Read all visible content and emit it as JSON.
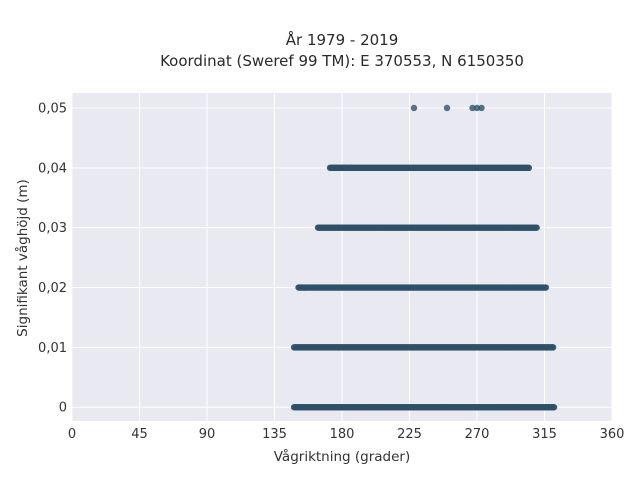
{
  "chart_data": {
    "type": "scatter",
    "title_lines": [
      "År 1979 - 2019",
      "Koordinat (Sweref 99 TM): E 370553, N 6150350"
    ],
    "xlabel": "Vågriktning (grader)",
    "ylabel": "Signifikant våghöjd (m)",
    "xlim": [
      0,
      360
    ],
    "ylim": [
      -0.0023,
      0.0525
    ],
    "x_ticks": [
      0,
      45,
      90,
      135,
      180,
      225,
      270,
      315,
      360
    ],
    "x_tick_labels": [
      "0",
      "45",
      "90",
      "135",
      "180",
      "225",
      "270",
      "315",
      "360"
    ],
    "y_ticks": [
      0,
      0.01,
      0.02,
      0.03,
      0.04,
      0.05
    ],
    "y_tick_labels": [
      "0",
      "0,01",
      "0,02",
      "0,03",
      "0,04",
      "0,05"
    ],
    "grid": true,
    "colors": {
      "background": "#e9e9f1",
      "grid": "#ffffff",
      "marker": "#2e5169"
    },
    "series": [
      {
        "points_by_level": [
          {
            "y": 0.0,
            "x_range": [
              148,
              322
            ]
          },
          {
            "y": 0.01,
            "x_range": [
              148,
              321
            ]
          },
          {
            "y": 0.02,
            "x_range": [
              151,
              316
            ]
          },
          {
            "y": 0.03,
            "x_range": [
              164,
              310
            ]
          },
          {
            "y": 0.04,
            "x_range": [
              172,
              305
            ]
          }
        ],
        "sparse_points": [
          {
            "x": 228,
            "y": 0.05
          },
          {
            "x": 250,
            "y": 0.05
          },
          {
            "x": 267,
            "y": 0.05
          },
          {
            "x": 270,
            "y": 0.05
          },
          {
            "x": 273,
            "y": 0.05
          },
          {
            "x": 176,
            "y": 0.04
          },
          {
            "x": 181,
            "y": 0.04
          },
          {
            "x": 186,
            "y": 0.04
          },
          {
            "x": 155,
            "y": 0.02
          },
          {
            "x": 316,
            "y": 0.02
          }
        ]
      }
    ]
  }
}
